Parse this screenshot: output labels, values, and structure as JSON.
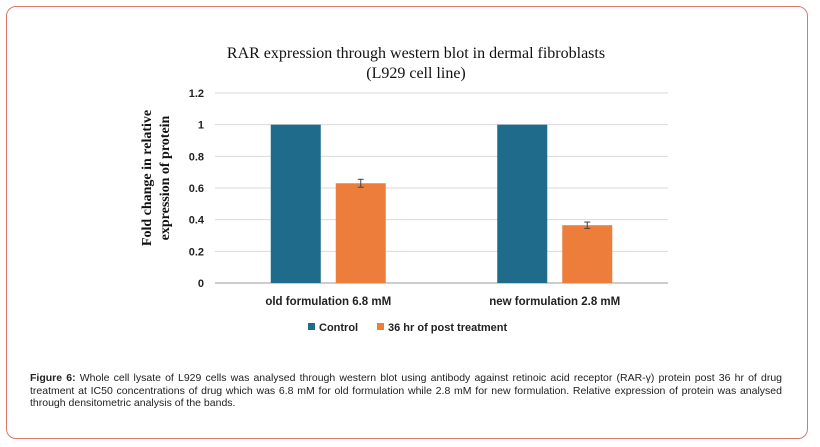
{
  "figure": {
    "caption_label": "Figure 6:",
    "caption_text": " Whole cell lysate of L929 cells was analysed through western blot using antibody against retinoic acid receptor (RAR-γ) protein post 36 hr of drug treatment at IC50 concentrations of drug which was 6.8 mM for old formulation while 2.8 mM for new formulation. Relative expression of protein was analysed through densitometric analysis of the bands."
  },
  "chart_data": {
    "type": "bar",
    "title_line1": "RAR expression through western blot in dermal fibroblasts",
    "title_line2": "(L929 cell line)",
    "ylabel_line1": "Fold change in relative",
    "ylabel_line2": "expression of protein",
    "xlabel": "",
    "categories": [
      "old formulation 6.8 mM",
      "new formulation 2.8 mM"
    ],
    "series": [
      {
        "name": "Control",
        "values": [
          1.0,
          1.0
        ],
        "errors": [
          0,
          0
        ],
        "color": "#1f6b8c"
      },
      {
        "name": "36 hr of post treatment",
        "values": [
          0.63,
          0.365
        ],
        "errors": [
          0.025,
          0.02
        ],
        "color": "#ed7d3a"
      }
    ],
    "ylim": [
      0,
      1.2
    ],
    "yticks": [
      "0",
      "0.2",
      "0.4",
      "0.6",
      "0.8",
      "1",
      "1.2"
    ],
    "grid": true,
    "legend": "bottom"
  }
}
